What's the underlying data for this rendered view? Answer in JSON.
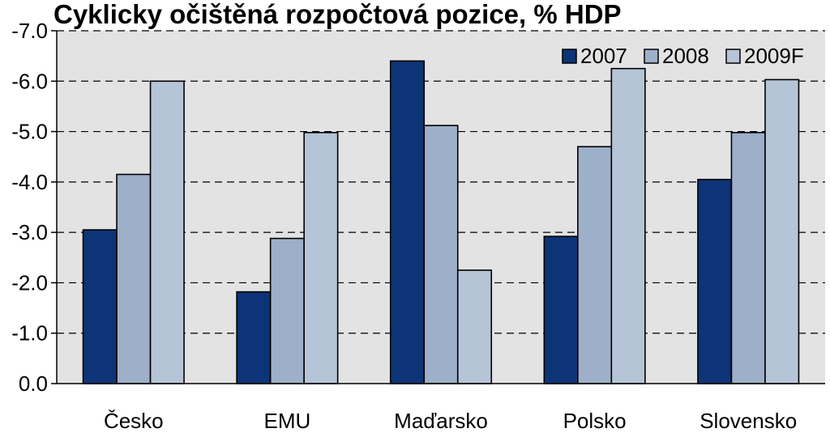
{
  "chart_data": {
    "type": "bar",
    "title": "Cyklicky očištěná rozpočtová pozice, % HDP",
    "xlabel": "",
    "ylabel": "",
    "categories": [
      "Česko",
      "EMU",
      "Maďarsko",
      "Polsko",
      "Slovensko"
    ],
    "series": [
      {
        "name": "2007",
        "values": [
          -3.05,
          -1.82,
          -6.4,
          -2.92,
          -4.05
        ]
      },
      {
        "name": "2008",
        "values": [
          -4.15,
          -2.88,
          -5.12,
          -4.7,
          -4.98
        ]
      },
      {
        "name": "2009F",
        "values": [
          -6.0,
          -4.98,
          -2.25,
          -6.25,
          -6.03
        ]
      }
    ],
    "ylim": [
      0,
      -7
    ],
    "y_ticks": [
      "0.0",
      "-1.0",
      "-2.0",
      "-3.0",
      "-4.0",
      "-5.0",
      "-6.0",
      "-7.0"
    ],
    "y_axis_reversed": true,
    "grid": true,
    "legend_position": "top-right",
    "colors": {
      "series": [
        "#0d3477",
        "#9eafc9",
        "#b6c4d7"
      ],
      "plot_background": "#e3e3e3",
      "gridline": "#000000",
      "bar_outline": "#000000"
    }
  }
}
